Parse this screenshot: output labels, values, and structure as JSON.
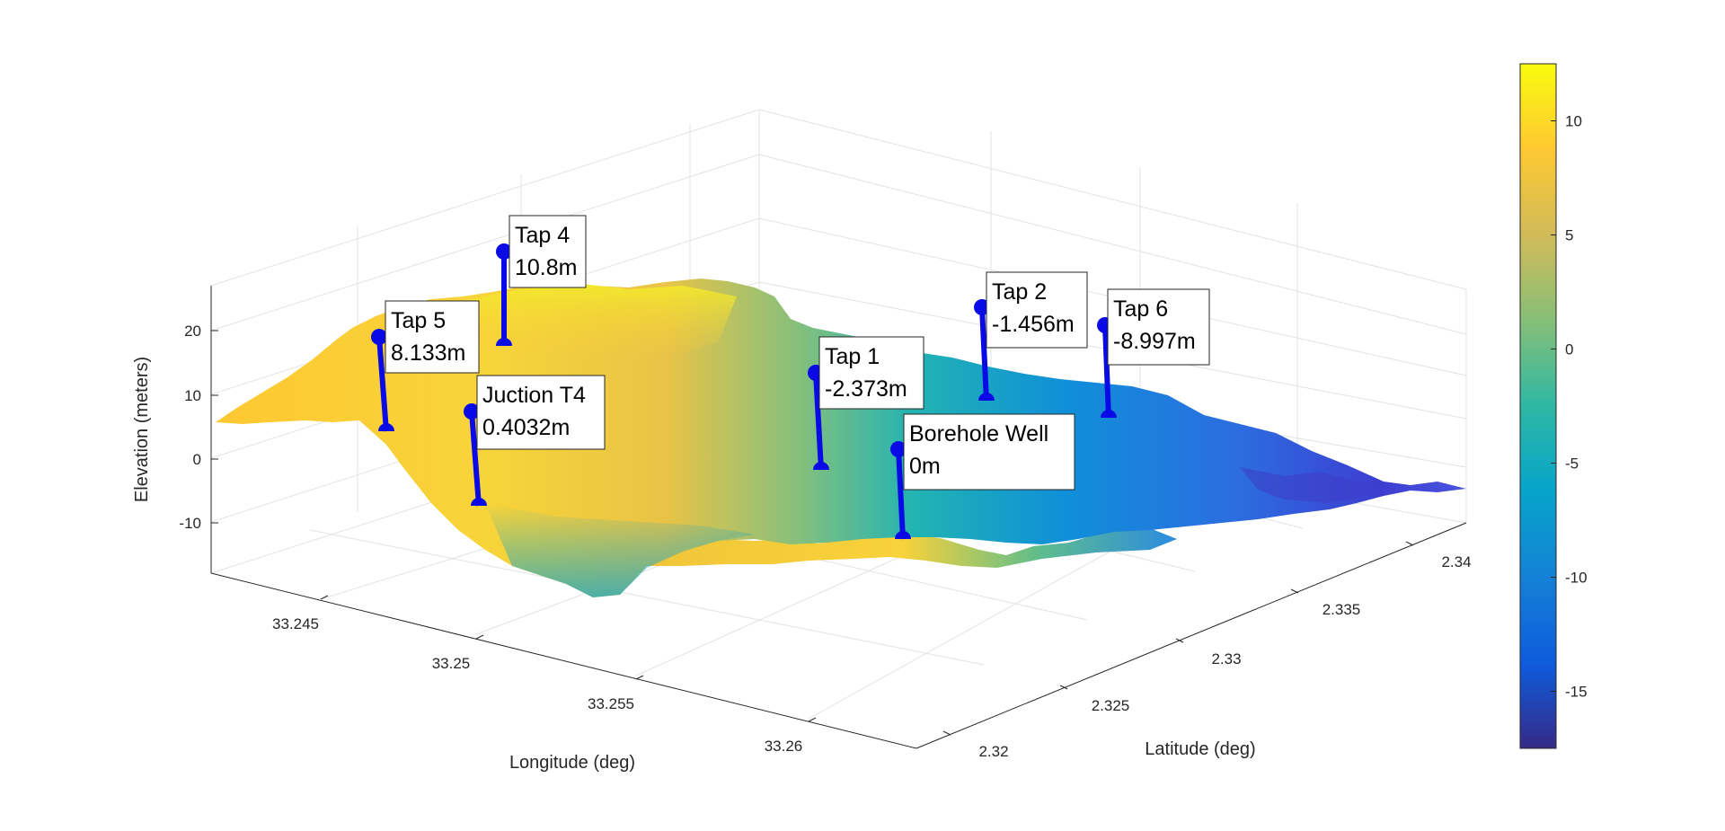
{
  "chart_data": {
    "type": "surface",
    "xlabel": "Longitude (deg)",
    "ylabel": "Latitude (deg)",
    "zlabel": "Elevation (meters)",
    "x_ticks": [
      "33.245",
      "33.25",
      "33.255",
      "33.26"
    ],
    "y_ticks": [
      "2.32",
      "2.325",
      "2.33",
      "2.335",
      "2.34"
    ],
    "z_ticks": [
      "-10",
      "0",
      "10",
      "20"
    ],
    "zlim": [
      -18,
      27
    ],
    "grid": true,
    "colormap": "parula",
    "colorbar": {
      "range": [
        -17.5,
        12.5
      ],
      "ticks": [
        "10",
        "5",
        "0",
        "-5",
        "-10",
        "-15"
      ],
      "tick_values": [
        10,
        5,
        0,
        -5,
        -10,
        -15
      ],
      "colors": [
        "#352a87",
        "#0f5cdd",
        "#1481d6",
        "#06a4ca",
        "#2eb7a4",
        "#87bf77",
        "#d1bb59",
        "#fec832",
        "#f9fb0e"
      ]
    },
    "points": [
      {
        "name": "Tap 4",
        "value_label": "10.8m",
        "elevation": 10.8
      },
      {
        "name": "Tap 5",
        "value_label": "8.133m",
        "elevation": 8.133
      },
      {
        "name": "Juction T4",
        "value_label": "0.4032m",
        "elevation": 0.4032
      },
      {
        "name": "Tap 1",
        "value_label": "-2.373m",
        "elevation": -2.373
      },
      {
        "name": "Tap 2",
        "value_label": "-1.456m",
        "elevation": -1.456
      },
      {
        "name": "Tap 6",
        "value_label": "-8.997m",
        "elevation": -8.997
      },
      {
        "name": "Borehole Well",
        "value_label": "0m",
        "elevation": 0
      }
    ],
    "marker_color": "#0a0ae6"
  }
}
